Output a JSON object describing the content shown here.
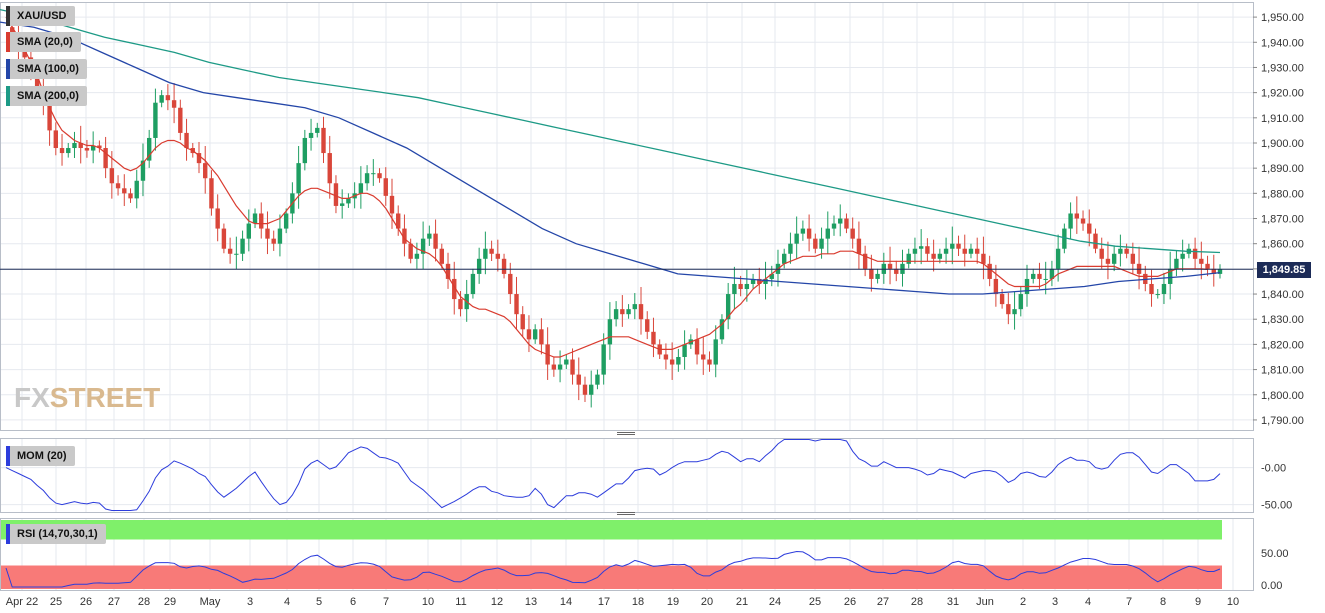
{
  "symbol": "XAU/USD",
  "last_price_label": "1,849.85",
  "logo": {
    "part1": "FX",
    "part2": "STREET"
  },
  "indicators": {
    "sma20": {
      "label": "SMA (20,0)",
      "color": "#d93b2f"
    },
    "sma100": {
      "label": "SMA (100,0)",
      "color": "#2446a8"
    },
    "sma200": {
      "label": "SMA (200,0)",
      "color": "#1d9a86"
    },
    "mom": {
      "label": "MOM (20)",
      "color": "#2d3ddc",
      "ticks": [
        "-0.00",
        "-50.00"
      ]
    },
    "rsi": {
      "label": "RSI (14,70,30,1)",
      "color": "#2d3ddc",
      "ticks": [
        "50.00",
        "0.00"
      ],
      "overbought_color": "#7ff06a",
      "oversold_color": "#f87a78"
    }
  },
  "colors": {
    "up": "#1e9e62",
    "down": "#d9463a",
    "last_line": "#1c2b57",
    "grid": "#e6e9ef"
  },
  "chart_data": {
    "type": "candlestick",
    "ylim": [
      1786,
      1956
    ],
    "y_ticks": [
      "1,950.00",
      "1,940.00",
      "1,930.00",
      "1,920.00",
      "1,910.00",
      "1,900.00",
      "1,890.00",
      "1,880.00",
      "1,870.00",
      "1,860.00",
      "1,850.00",
      "1,840.00",
      "1,830.00",
      "1,820.00",
      "1,810.00",
      "1,800.00",
      "1,790.00"
    ],
    "y_tick_values": [
      1950,
      1940,
      1930,
      1920,
      1910,
      1900,
      1890,
      1880,
      1870,
      1860,
      1850,
      1840,
      1830,
      1820,
      1810,
      1800,
      1790
    ],
    "x_labels": [
      "Apr 22",
      "25",
      "26",
      "27",
      "28",
      "29",
      "May",
      "3",
      "4",
      "5",
      "6",
      "7",
      "10",
      "11",
      "12",
      "13",
      "14",
      "17",
      "18",
      "19",
      "20",
      "21",
      "24",
      "25",
      "26",
      "27",
      "28",
      "31",
      "Jun",
      "2",
      "3",
      "4",
      "7",
      "8",
      "9",
      "10"
    ],
    "last_price": 1849.85,
    "closes": [
      1946,
      1942,
      1938,
      1934,
      1930,
      1922,
      1915,
      1905,
      1898,
      1896,
      1898,
      1900,
      1898,
      1897,
      1899,
      1898,
      1890,
      1884,
      1882,
      1880,
      1878,
      1885,
      1893,
      1902,
      1916,
      1919,
      1917,
      1914,
      1904,
      1898,
      1896,
      1892,
      1886,
      1874,
      1866,
      1858,
      1856,
      1856,
      1862,
      1868,
      1872,
      1866,
      1862,
      1860,
      1866,
      1872,
      1880,
      1892,
      1902,
      1904,
      1906,
      1896,
      1884,
      1875,
      1876,
      1878,
      1880,
      1884,
      1888,
      1888,
      1886,
      1879,
      1872,
      1866,
      1860,
      1854,
      1856,
      1862,
      1864,
      1858,
      1852,
      1846,
      1838,
      1834,
      1840,
      1848,
      1854,
      1858,
      1856,
      1854,
      1848,
      1840,
      1832,
      1826,
      1822,
      1826,
      1820,
      1812,
      1810,
      1812,
      1814,
      1808,
      1804,
      1800,
      1804,
      1808,
      1820,
      1830,
      1834,
      1832,
      1834,
      1836,
      1830,
      1825,
      1820,
      1816,
      1814,
      1812,
      1815,
      1820,
      1822,
      1816,
      1814,
      1812,
      1822,
      1830,
      1840,
      1844,
      1842,
      1844,
      1846,
      1844,
      1846,
      1848,
      1852,
      1856,
      1860,
      1864,
      1866,
      1862,
      1858,
      1862,
      1866,
      1868,
      1870,
      1866,
      1862,
      1856,
      1850,
      1846,
      1848,
      1852,
      1850,
      1848,
      1852,
      1856,
      1858,
      1859,
      1856,
      1854,
      1856,
      1858,
      1860,
      1858,
      1856,
      1858,
      1856,
      1852,
      1846,
      1840,
      1836,
      1832,
      1834,
      1840,
      1846,
      1848,
      1846,
      1846,
      1850,
      1858,
      1866,
      1872,
      1870,
      1868,
      1864,
      1858,
      1854,
      1852,
      1856,
      1858,
      1856,
      1852,
      1848,
      1844,
      1840,
      1840,
      1844,
      1850,
      1854,
      1856,
      1858,
      1854,
      1852,
      1850,
      1848,
      1849.85
    ],
    "sma20": [
      1950,
      1946,
      1942,
      1937,
      1932,
      1927,
      1920,
      1914,
      1909,
      1905,
      1903,
      1901,
      1900,
      1899,
      1899,
      1898,
      1896,
      1894,
      1892,
      1890,
      1889,
      1890,
      1892,
      1895,
      1898,
      1900,
      1901,
      1901,
      1900,
      1898,
      1897,
      1895,
      1893,
      1890,
      1887,
      1883,
      1879,
      1875,
      1872,
      1869,
      1868,
      1868,
      1868,
      1869,
      1870,
      1873,
      1876,
      1879,
      1881,
      1882,
      1882,
      1881,
      1880,
      1879,
      1878,
      1878,
      1879,
      1880,
      1880,
      1879,
      1877,
      1874,
      1870,
      1866,
      1862,
      1860,
      1858,
      1857,
      1856,
      1854,
      1851,
      1847,
      1843,
      1839,
      1837,
      1835,
      1834,
      1834,
      1833,
      1832,
      1831,
      1829,
      1826,
      1823,
      1820,
      1818,
      1817,
      1816,
      1815,
      1815,
      1816,
      1817,
      1818,
      1819,
      1820,
      1821,
      1822,
      1823,
      1823,
      1823,
      1823,
      1822,
      1821,
      1820,
      1819,
      1818,
      1818,
      1818,
      1819,
      1820,
      1821,
      1822,
      1823,
      1824,
      1826,
      1828,
      1831,
      1834,
      1836,
      1839,
      1842,
      1844,
      1846,
      1848,
      1850,
      1852,
      1853,
      1854,
      1855,
      1855,
      1855,
      1856,
      1856,
      1856,
      1857,
      1857,
      1857,
      1856,
      1855,
      1854,
      1853,
      1853,
      1853,
      1853,
      1853,
      1853,
      1853,
      1853,
      1853,
      1853,
      1853,
      1853,
      1853,
      1853,
      1853,
      1853,
      1853,
      1852,
      1850,
      1848,
      1846,
      1844,
      1843,
      1843,
      1843,
      1843,
      1843,
      1844,
      1846,
      1848,
      1849,
      1850,
      1851,
      1851,
      1851,
      1851,
      1851,
      1851,
      1851,
      1850,
      1849,
      1848,
      1847,
      1847,
      1847,
      1847,
      1848,
      1849,
      1850,
      1850,
      1850,
      1850,
      1850,
      1849.8
    ]
  }
}
